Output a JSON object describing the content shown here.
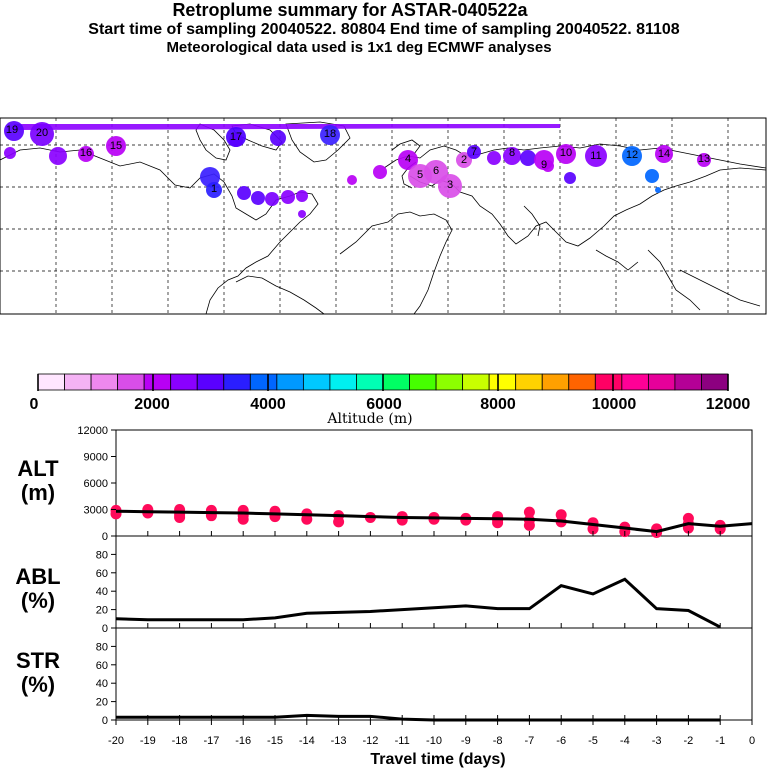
{
  "title": {
    "main": "Retroplume summary for ASTAR-040522a",
    "times": "Start time of sampling 20040522. 80804     End time of sampling 20040522. 81108",
    "met": "Meteorological data used is 1x1 deg ECMWF analyses"
  },
  "colors": {
    "scale": [
      "#ffe6ff",
      "#f5b3f5",
      "#ee88ee",
      "#d94ee8",
      "#b800f5",
      "#8a00ff",
      "#5a00ff",
      "#2a1eff",
      "#0066ff",
      "#0099ff",
      "#00c8ff",
      "#00f0f0",
      "#00ffb4",
      "#00ff64",
      "#46ff00",
      "#8cff00",
      "#c8ff00",
      "#ffff00",
      "#ffd200",
      "#ffa000",
      "#ff6400",
      "#ff0064",
      "#ff0096",
      "#e6009a",
      "#b40096",
      "#8c0080"
    ],
    "alt_points": "#ff0a5a",
    "track": "#8c00ff"
  },
  "colorbar": {
    "labels": [
      "0",
      "2000",
      "4000",
      "6000",
      "8000",
      "10000",
      "12000"
    ],
    "title": "Altitude (m)"
  },
  "map_labels": [
    "19",
    "20",
    "18",
    "17",
    "16",
    "15",
    "14",
    "13",
    "12",
    "11",
    "10",
    "9",
    "8",
    "7",
    "6",
    "5",
    "4",
    "3",
    "2",
    "1"
  ],
  "chart_data": [
    {
      "type": "scatter",
      "name": "ALT",
      "ylabel": "ALT\n(m)",
      "ylabel_lines": [
        "ALT",
        "(m)"
      ],
      "ylim": [
        0,
        12000
      ],
      "yticks": [
        "12000",
        "9000",
        "6000",
        "3000",
        "0"
      ],
      "x": [
        -20,
        -19,
        -18,
        -17,
        -16,
        -15,
        -14,
        -13,
        -12,
        -11,
        -10,
        -9,
        -8,
        -7,
        -6,
        -5,
        -4,
        -3,
        -2,
        -1,
        0
      ],
      "mean_line": [
        2800,
        2750,
        2700,
        2650,
        2600,
        2500,
        2400,
        2300,
        2200,
        2100,
        2050,
        2000,
        1950,
        1900,
        1700,
        1300,
        900,
        500,
        1400,
        1100,
        1400
      ],
      "points": [
        [
          -20,
          2900
        ],
        [
          -20,
          2500
        ],
        [
          -19,
          3000
        ],
        [
          -19,
          2600
        ],
        [
          -18,
          3000
        ],
        [
          -18,
          2400
        ],
        [
          -18,
          2100
        ],
        [
          -17,
          2900
        ],
        [
          -17,
          2300
        ],
        [
          -16,
          2900
        ],
        [
          -16,
          2300
        ],
        [
          -16,
          1900
        ],
        [
          -15,
          2800
        ],
        [
          -15,
          2200
        ],
        [
          -14,
          2500
        ],
        [
          -14,
          1900
        ],
        [
          -13,
          2300
        ],
        [
          -13,
          1600
        ],
        [
          -12,
          2100
        ],
        [
          -11,
          2200
        ],
        [
          -11,
          1800
        ],
        [
          -10,
          2100
        ],
        [
          -10,
          1900
        ],
        [
          -9,
          2000
        ],
        [
          -9,
          1800
        ],
        [
          -8,
          2200
        ],
        [
          -8,
          1800
        ],
        [
          -8,
          1500
        ],
        [
          -7,
          2700
        ],
        [
          -7,
          1800
        ],
        [
          -7,
          1200
        ],
        [
          -6,
          2400
        ],
        [
          -6,
          1600
        ],
        [
          -5,
          1500
        ],
        [
          -5,
          800
        ],
        [
          -4,
          1000
        ],
        [
          -4,
          500
        ],
        [
          -3,
          800
        ],
        [
          -3,
          400
        ],
        [
          -2,
          2000
        ],
        [
          -2,
          1400
        ],
        [
          -2,
          900
        ],
        [
          -1,
          1200
        ],
        [
          -1,
          800
        ]
      ]
    },
    {
      "type": "line",
      "name": "ABL",
      "ylabel_lines": [
        "ABL",
        "(%)"
      ],
      "ylim": [
        0,
        100
      ],
      "yticks": [
        "80",
        "60",
        "40",
        "20",
        "0"
      ],
      "x": [
        -20,
        -19,
        -18,
        -17,
        -16,
        -15,
        -14,
        -13,
        -12,
        -11,
        -10,
        -9,
        -8,
        -7,
        -6,
        -5,
        -4,
        -3,
        -2,
        -1
      ],
      "values": [
        10,
        9,
        9,
        9,
        9,
        11,
        16,
        17,
        18,
        20,
        22,
        24,
        21,
        21,
        46,
        37,
        53,
        21,
        19,
        1
      ]
    },
    {
      "type": "line",
      "name": "STR",
      "ylabel_lines": [
        "STR",
        "(%)"
      ],
      "ylim": [
        0,
        100
      ],
      "yticks": [
        "80",
        "60",
        "40",
        "20",
        "0"
      ],
      "x": [
        -20,
        -19,
        -18,
        -17,
        -16,
        -15,
        -14,
        -13,
        -12,
        -11,
        -10,
        -9,
        -8,
        -7,
        -6,
        -5,
        -4,
        -3,
        -2,
        -1
      ],
      "values": [
        3,
        3,
        3,
        3,
        3,
        3,
        5,
        4,
        4,
        1,
        0,
        0,
        0,
        0,
        0,
        0,
        0,
        0,
        0,
        0
      ],
      "xlabel": "Travel time (days)",
      "xticks": [
        "-20",
        "-19",
        "-18",
        "-17",
        "-16",
        "-15",
        "-14",
        "-13",
        "-12",
        "-11",
        "-10",
        "-9",
        "-8",
        "-7",
        "-6",
        "-5",
        "-4",
        "-3",
        "-2",
        "-1",
        "0"
      ]
    }
  ]
}
